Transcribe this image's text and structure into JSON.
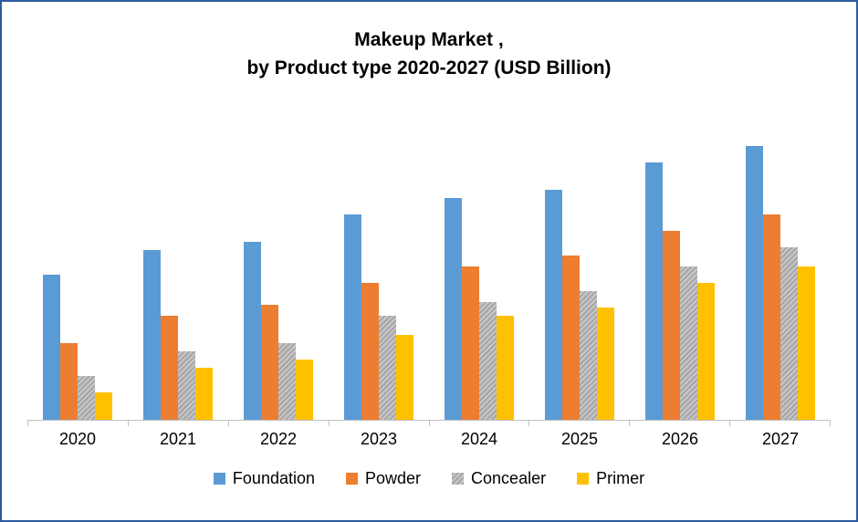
{
  "chart_data": {
    "type": "bar",
    "title": "Makeup Market , by Product type 2020-2027 (USD Billion)",
    "title_lines": [
      "Makeup Market ,",
      "by Product type 2020-2027 (USD Billion)"
    ],
    "categories": [
      "2020",
      "2021",
      "2022",
      "2023",
      "2024",
      "2025",
      "2026",
      "2027"
    ],
    "series": [
      {
        "name": "Foundation",
        "color": "#5B9BD5",
        "pattern": false,
        "values": [
          53,
          62,
          65,
          75,
          81,
          84,
          94,
          100
        ]
      },
      {
        "name": "Powder",
        "color": "#ED7D31",
        "pattern": false,
        "values": [
          28,
          38,
          42,
          50,
          56,
          60,
          69,
          75
        ]
      },
      {
        "name": "Concealer",
        "color": "#A5A5A5",
        "pattern": true,
        "values": [
          16,
          25,
          28,
          38,
          43,
          47,
          56,
          63
        ]
      },
      {
        "name": "Primer",
        "color": "#FFC000",
        "pattern": false,
        "values": [
          10,
          19,
          22,
          31,
          38,
          41,
          50,
          56
        ]
      }
    ],
    "ylim": [
      0,
      110
    ],
    "xlabel": "",
    "ylabel": "",
    "grid": false,
    "y_axis_visible": false,
    "legend_position": "bottom",
    "axis_color": "#BFBFBF"
  }
}
